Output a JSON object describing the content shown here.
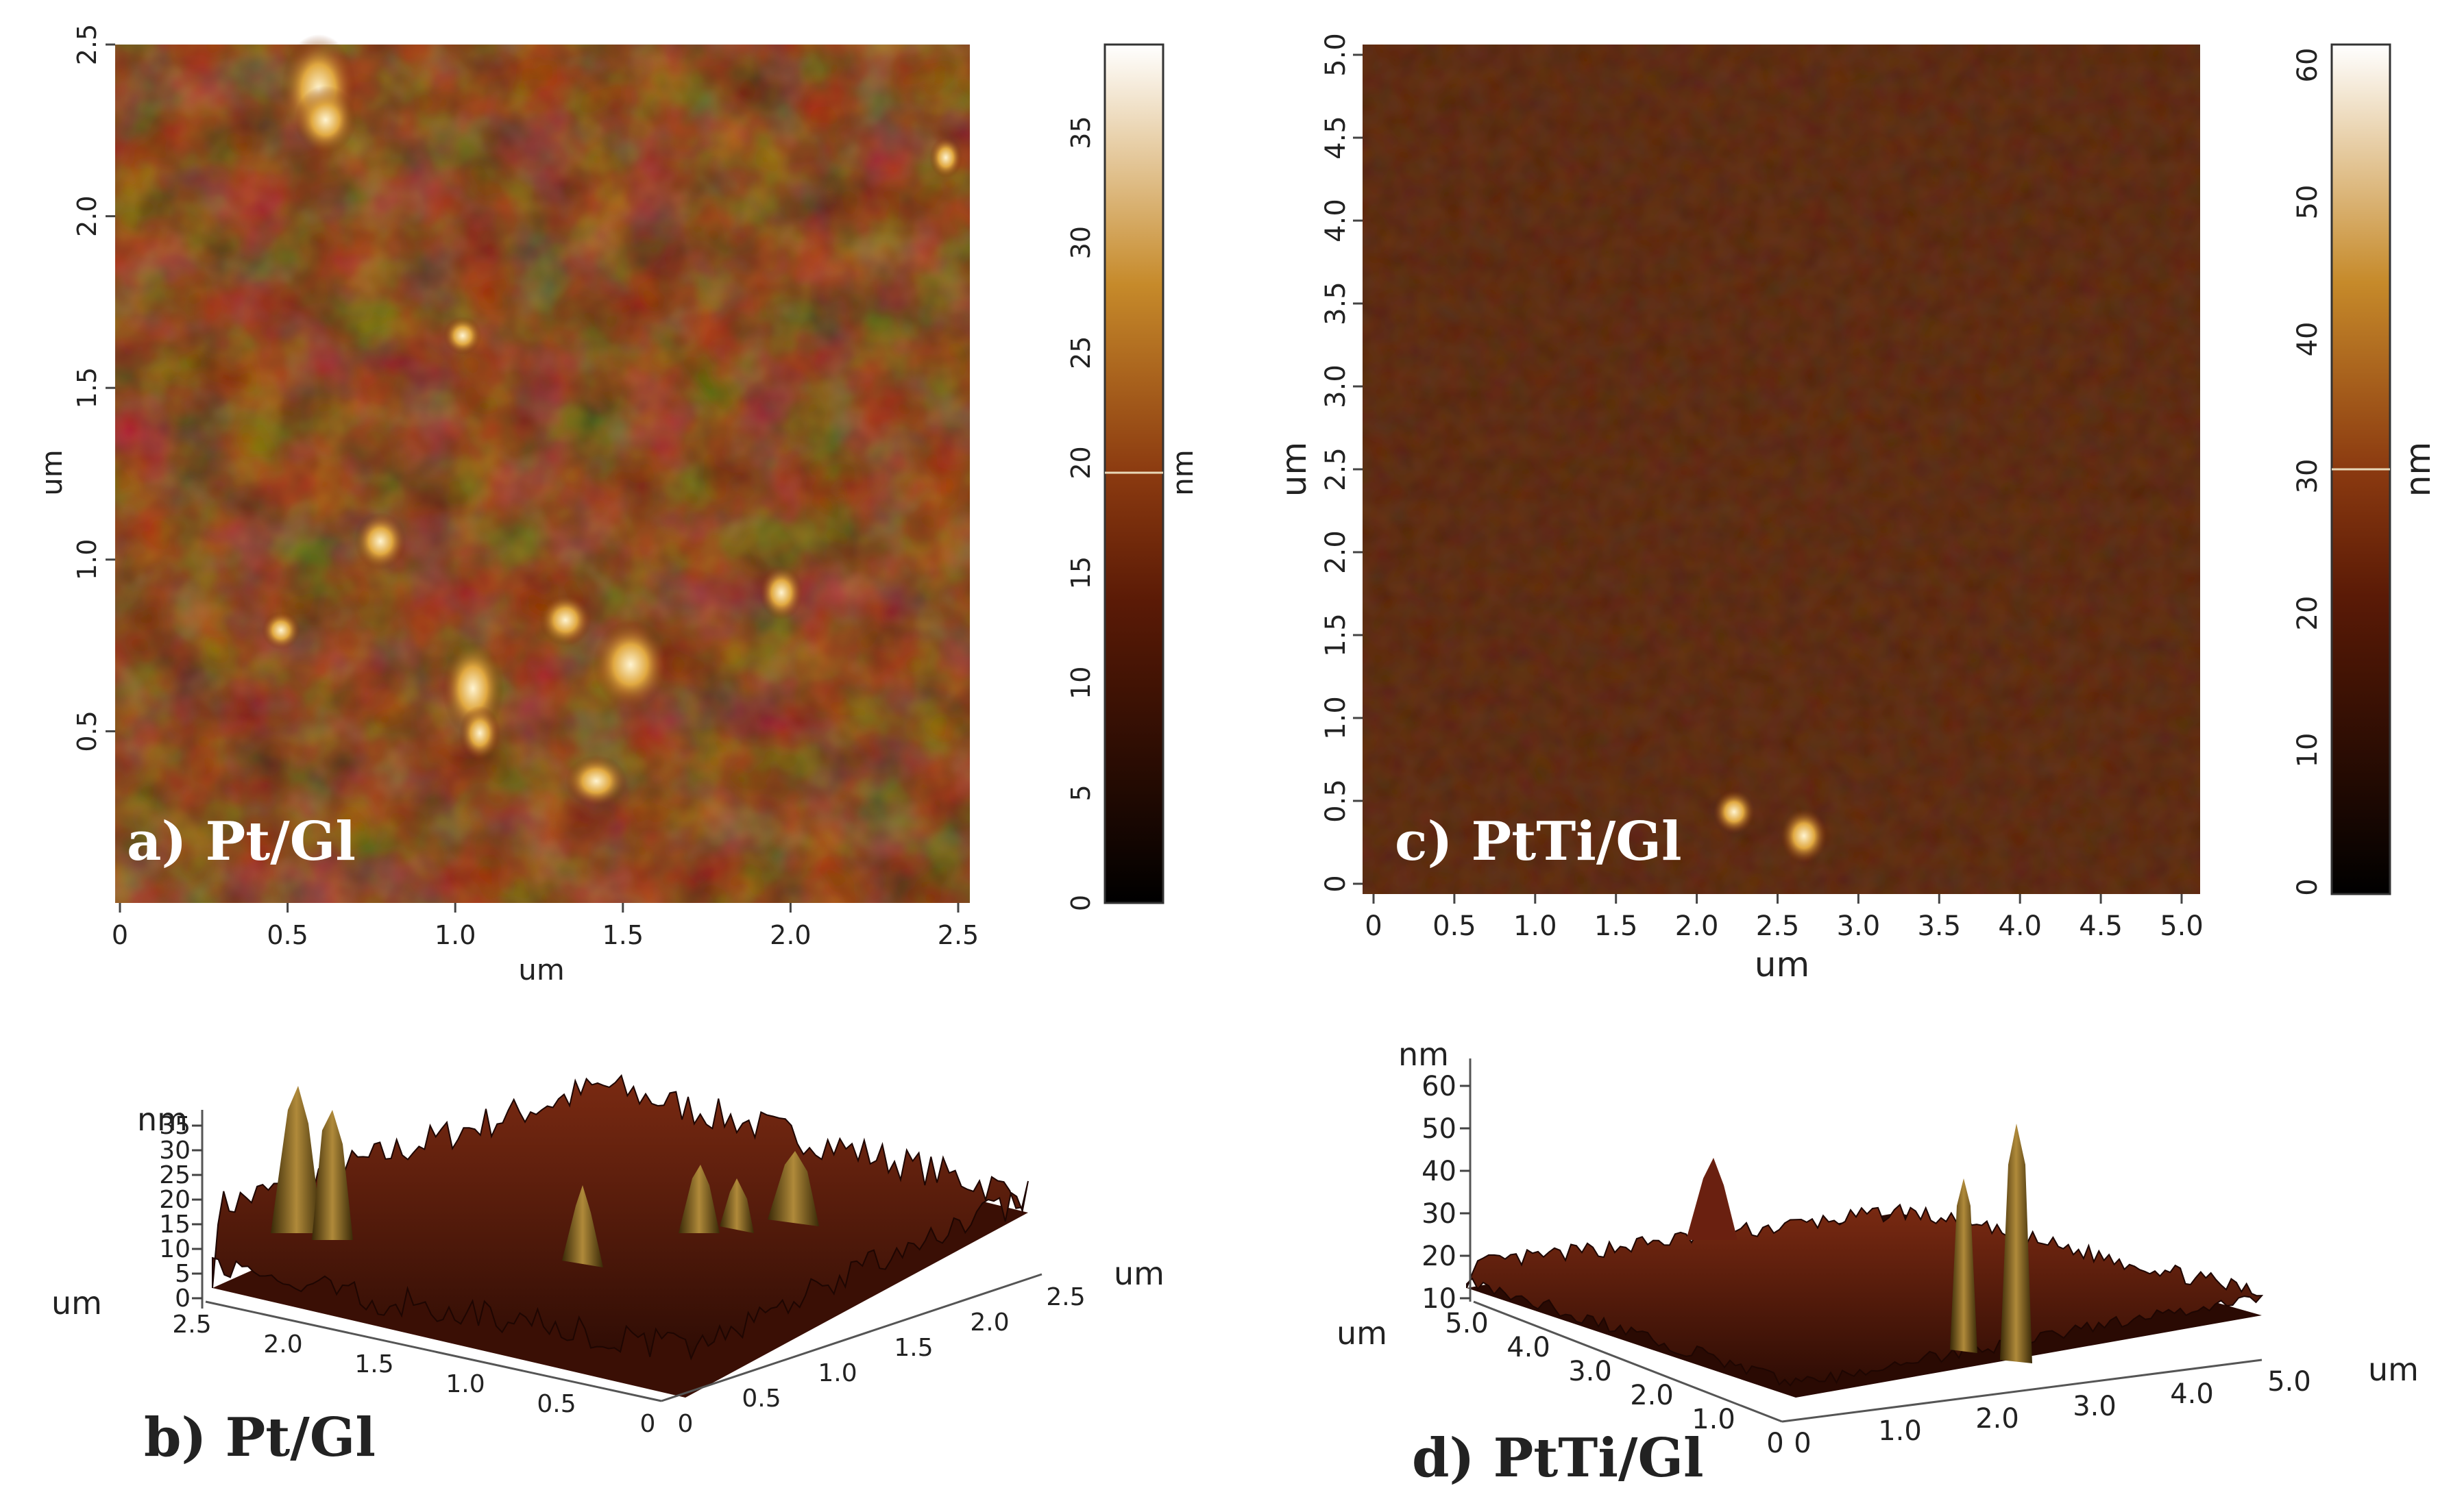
{
  "unit_um": "um",
  "unit_nm": "nm",
  "panels": {
    "a": {
      "caption": "a) Pt/Gl",
      "x_ticks": [
        "0",
        "0.5",
        "1.0",
        "1.5",
        "2.0",
        "2.5"
      ],
      "y_ticks": [
        "0.5",
        "1.0",
        "1.5",
        "2.0",
        "2.5"
      ],
      "colorbar_ticks": [
        "0",
        "5",
        "10",
        "15",
        "20",
        "25",
        "30",
        "35"
      ]
    },
    "c": {
      "caption": "c) PtTi/Gl",
      "x_ticks": [
        "0",
        "0.5",
        "1.0",
        "1.5",
        "2.0",
        "2.5",
        "3.0",
        "3.5",
        "4.0",
        "4.5",
        "5.0"
      ],
      "y_ticks": [
        "0",
        "0.5",
        "1.0",
        "1.5",
        "2.0",
        "2.5",
        "3.0",
        "3.5",
        "4.0",
        "4.5",
        "5.0"
      ],
      "colorbar_ticks": [
        "0",
        "10",
        "20",
        "30",
        "40",
        "50",
        "60"
      ]
    },
    "b": {
      "caption": "b) Pt/Gl",
      "z_ticks": [
        "0",
        "5",
        "10",
        "15",
        "20",
        "25",
        "30",
        "35"
      ],
      "left_ticks": [
        "2.5",
        "2.0",
        "1.5",
        "1.0",
        "0.5",
        "0"
      ],
      "right_ticks": [
        "0",
        "0.5",
        "1.0",
        "1.5",
        "2.0",
        "2.5"
      ]
    },
    "d": {
      "caption": "d) PtTi/Gl",
      "z_ticks": [
        "10",
        "20",
        "30",
        "40",
        "50",
        "60"
      ],
      "left_ticks": [
        "5.0",
        "4.0",
        "3.0",
        "2.0",
        "1.0",
        "0"
      ],
      "right_ticks": [
        "0",
        "1.0",
        "2.0",
        "3.0",
        "4.0",
        "5.0"
      ]
    }
  },
  "colors": {
    "dark": "#000000",
    "mid": "#5a1a06",
    "bright": "#c68a2a",
    "white": "#ffffff"
  }
}
